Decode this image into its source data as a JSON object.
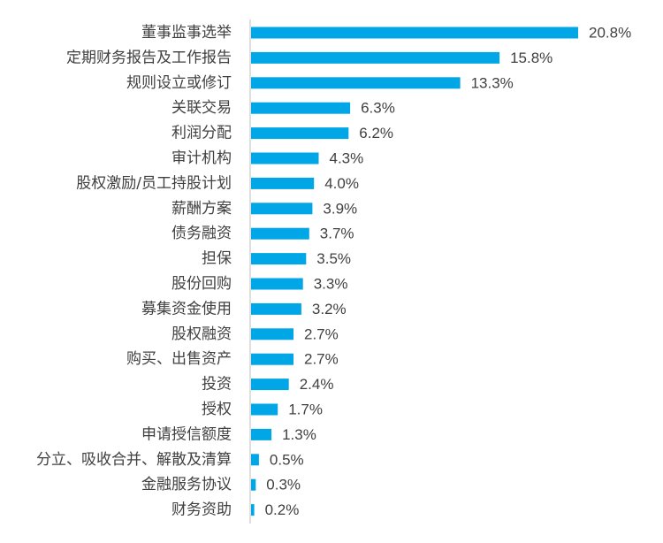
{
  "chart_data": {
    "type": "bar",
    "orientation": "horizontal",
    "categories": [
      "董事监事选举",
      "定期财务报告及工作报告",
      "规则设立或修订",
      "关联交易",
      "利润分配",
      "审计机构",
      "股权激励/员工持股计划",
      "薪酬方案",
      "债务融资",
      "担保",
      "股份回购",
      "募集资金使用",
      "股权融资",
      "购买、出售资产",
      "投资",
      "授权",
      "申请授信额度",
      "分立、吸收合并、解散及清算",
      "金融服务协议",
      "财务资助"
    ],
    "values": [
      20.8,
      15.8,
      13.3,
      6.3,
      6.2,
      4.3,
      4.0,
      3.9,
      3.7,
      3.5,
      3.3,
      3.2,
      2.7,
      2.7,
      2.4,
      1.7,
      1.3,
      0.5,
      0.3,
      0.2
    ],
    "value_labels": [
      "20.8%",
      "15.8%",
      "13.3%",
      "6.3%",
      "6.2%",
      "4.3%",
      "4.0%",
      "3.9%",
      "3.7%",
      "3.5%",
      "3.3%",
      "3.2%",
      "2.7%",
      "2.7%",
      "2.4%",
      "1.7%",
      "1.3%",
      "0.5%",
      "0.3%",
      "0.2%"
    ],
    "unit": "%",
    "bar_color": "#00A6E6",
    "axis_color": "#BFBFBF",
    "text_color": "#404040",
    "grid": false,
    "legend": "none"
  }
}
